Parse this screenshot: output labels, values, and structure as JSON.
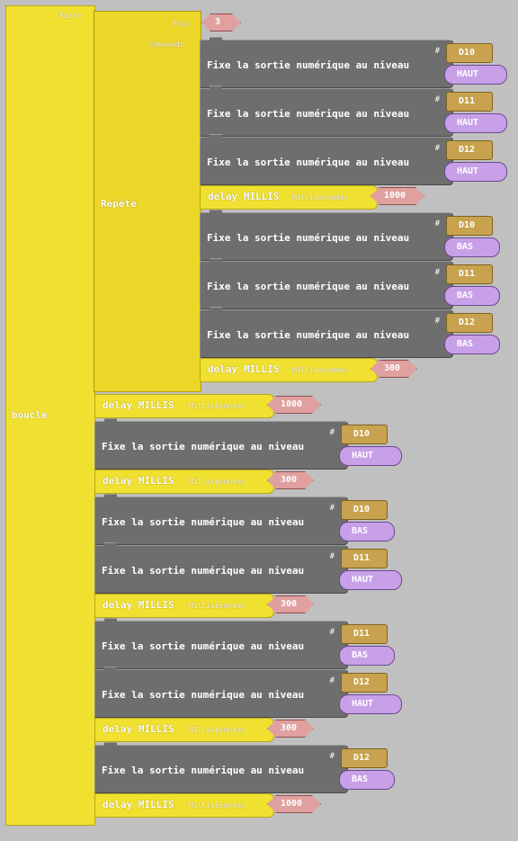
{
  "loop": {
    "label": "boucle",
    "do_label": "Faire"
  },
  "repeat": {
    "label": "Repète",
    "times_label": "Fois",
    "times": "3",
    "commands_label": "Commands"
  },
  "labels": {
    "set_output": "Fixe la sortie numérique au niveau",
    "hash": "#",
    "delay": "delay MILLIS",
    "ms": "Millisecondes"
  },
  "repeat_blocks": [
    {
      "type": "set",
      "pin": "D10",
      "level": "HAUT"
    },
    {
      "type": "set",
      "pin": "D11",
      "level": "HAUT"
    },
    {
      "type": "set",
      "pin": "D12",
      "level": "HAUT"
    },
    {
      "type": "delay",
      "value": "1000"
    },
    {
      "type": "set",
      "pin": "D10",
      "level": "BAS"
    },
    {
      "type": "set",
      "pin": "D11",
      "level": "BAS"
    },
    {
      "type": "set",
      "pin": "D12",
      "level": "BAS"
    },
    {
      "type": "delay",
      "value": "300"
    }
  ],
  "loop_blocks": [
    {
      "type": "delay",
      "value": "1000"
    },
    {
      "type": "set",
      "pin": "D10",
      "level": "HAUT"
    },
    {
      "type": "delay",
      "value": "300"
    },
    {
      "type": "set",
      "pin": "D10",
      "level": "BAS"
    },
    {
      "type": "set",
      "pin": "D11",
      "level": "HAUT"
    },
    {
      "type": "delay",
      "value": "300"
    },
    {
      "type": "set",
      "pin": "D11",
      "level": "BAS"
    },
    {
      "type": "set",
      "pin": "D12",
      "level": "HAUT"
    },
    {
      "type": "delay",
      "value": "300"
    },
    {
      "type": "set",
      "pin": "D12",
      "level": "BAS"
    },
    {
      "type": "delay",
      "value": "1000"
    }
  ]
}
